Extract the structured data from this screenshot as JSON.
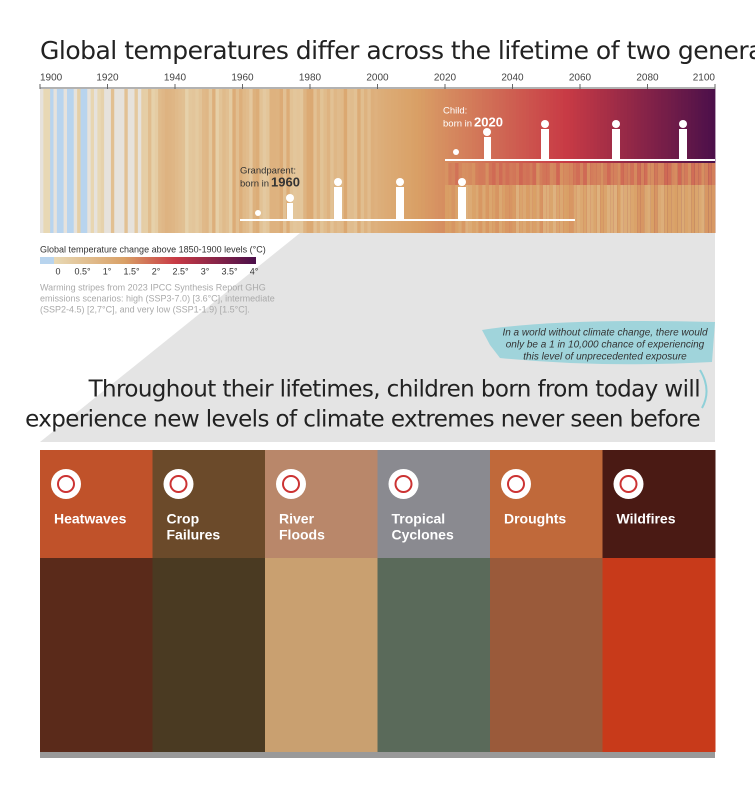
{
  "header": {
    "title": "Global temperatures differ across the lifetime of two generations"
  },
  "timeline": {
    "years": [
      1900,
      1920,
      1940,
      1960,
      1980,
      2000,
      2020,
      2040,
      2060,
      2080,
      2100
    ],
    "child": {
      "label": "Child:",
      "born": "born in",
      "year": "2020"
    },
    "grandparent": {
      "label": "Grandparent:",
      "born": "born in",
      "year": "1960"
    }
  },
  "legend": {
    "title": "Global temperature change above 1850-1900 levels (°C)",
    "ticks": [
      "0",
      "0.5°",
      "1°",
      "1.5°",
      "2°",
      "2.5°",
      "3°",
      "3.5°",
      "4°"
    ],
    "source": [
      "Warming stripes from 2023 IPCC Synthesis Report GHG",
      "emissions scenarios: high (SSP3-7.0) [3.6°C],  intermediate",
      "(SSP2-4.5) [2,7°C], and very low (SSP1-1.9) [1.5°C]."
    ]
  },
  "callout": [
    "In a world without climate change, there would",
    "only be a 1 in 10,000 chance of experiencing",
    "this level of unprecedented exposure"
  ],
  "headline": [
    "Throughout their lifetimes, children born from today will",
    "experience new levels of climate extremes never seen before"
  ],
  "panels": [
    [
      "Heatwaves"
    ],
    [
      "Crop",
      "Failures"
    ],
    [
      "River",
      "Floods"
    ],
    [
      "Tropical",
      "Cyclones"
    ],
    [
      "Droughts"
    ],
    [
      "Wildfires"
    ]
  ]
}
